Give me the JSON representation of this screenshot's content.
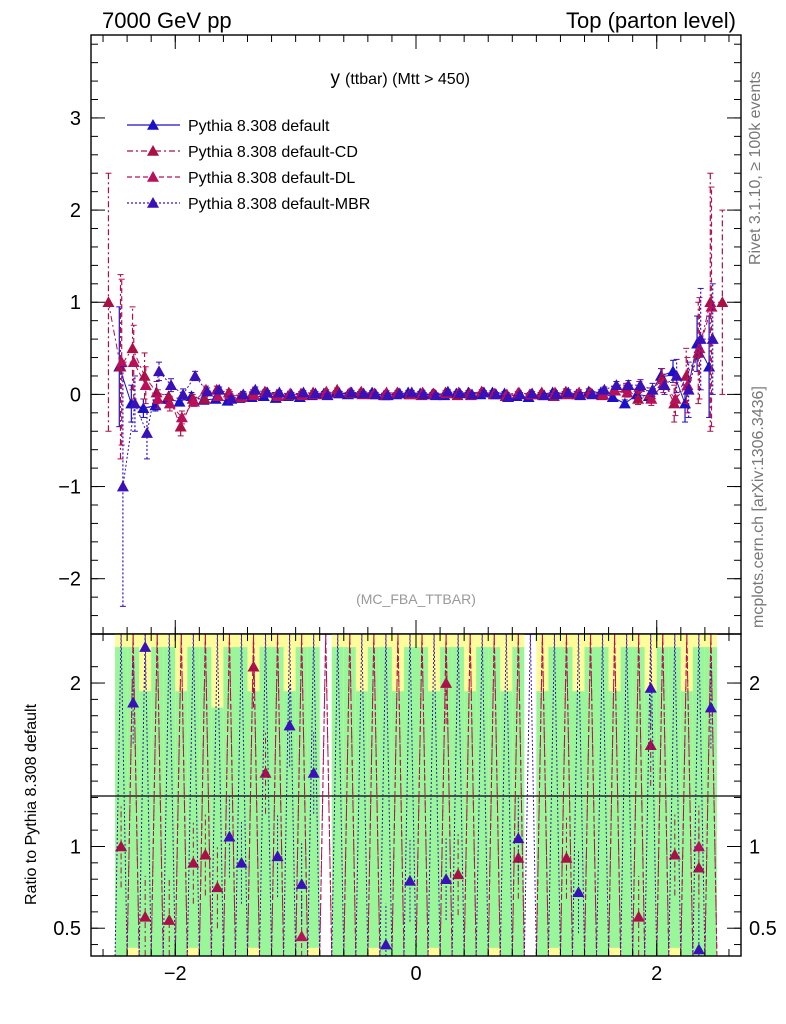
{
  "header": {
    "left": "7000 GeV pp",
    "right": "Top (parton level)"
  },
  "side_labels": {
    "rivet": "Rivet 3.1.10, ≥ 100k events",
    "source": "mcplots.cern.ch [arXiv:1306.3436]"
  },
  "chart_data": {
    "type": "line",
    "title_main": "y",
    "title_sub": "(ttbar) (Mtt > 450)",
    "watermark": "(MC_FBA_TTBAR)",
    "xlim": [
      -2.7,
      2.7
    ],
    "ylim": [
      -2.6,
      3.9
    ],
    "x_ticks": [
      "−2",
      "0",
      "2"
    ],
    "y_ticks": [
      "−2",
      "−1",
      "0",
      "1",
      "2",
      "3"
    ],
    "ratio_ylabel": "Ratio to Pythia 8.308 default",
    "ratio_ylim": [
      0.33,
      2.3
    ],
    "ratio_ticks": [
      "0.5",
      "1",
      "2"
    ],
    "ratio_reference": 1,
    "colors": {
      "default": "#1a10c8",
      "cd": "#aa1045",
      "dl": "#b8105a",
      "mbr": "#3a10b8",
      "band_inner": "#99f799",
      "band_outer": "#fcfc99"
    },
    "x": [
      -2.55,
      -2.45,
      -2.35,
      -2.25,
      -2.15,
      -2.05,
      -1.95,
      -1.85,
      -1.75,
      -1.65,
      -1.55,
      -1.45,
      -1.35,
      -1.25,
      -1.15,
      -1.05,
      -0.95,
      -0.85,
      -0.75,
      -0.65,
      -0.55,
      -0.45,
      -0.35,
      -0.25,
      -0.15,
      -0.05,
      0.05,
      0.15,
      0.25,
      0.35,
      0.45,
      0.55,
      0.65,
      0.75,
      0.85,
      0.95,
      1.05,
      1.15,
      1.25,
      1.35,
      1.45,
      1.55,
      1.65,
      1.75,
      1.85,
      1.95,
      2.05,
      2.15,
      2.25,
      2.35,
      2.45,
      2.55
    ],
    "series": [
      {
        "name": "Pythia 8.308 default",
        "style": "solid",
        "color_key": "default",
        "values": [
          null,
          0.3,
          -0.1,
          -0.15,
          -0.12,
          -0.05,
          -0.08,
          -0.02,
          -0.06,
          -0.05,
          -0.07,
          -0.04,
          -0.03,
          -0.02,
          -0.04,
          -0.02,
          -0.03,
          -0.01,
          0.01,
          0.02,
          0.0,
          0.01,
          0.02,
          -0.01,
          0.0,
          0.02,
          0.01,
          0.0,
          -0.01,
          0.01,
          0.02,
          0.0,
          0.02,
          0.01,
          -0.02,
          -0.03,
          0.0,
          0.02,
          0.01,
          0.0,
          0.03,
          0.02,
          -0.03,
          -0.1,
          0.0,
          -0.02,
          0.2,
          0.25,
          -0.1,
          0.55,
          0.3,
          null
        ],
        "errors": [
          null,
          0.65,
          0.2,
          0.1,
          0.06,
          0.05,
          0.04,
          0.04,
          0.03,
          0.03,
          0.03,
          0.03,
          0.02,
          0.02,
          0.02,
          0.02,
          0.02,
          0.02,
          0.02,
          0.02,
          0.02,
          0.02,
          0.02,
          0.02,
          0.02,
          0.02,
          0.02,
          0.02,
          0.02,
          0.02,
          0.02,
          0.02,
          0.02,
          0.02,
          0.02,
          0.02,
          0.02,
          0.02,
          0.02,
          0.03,
          0.03,
          0.03,
          0.03,
          0.04,
          0.05,
          0.06,
          0.08,
          0.12,
          0.2,
          0.3,
          0.55,
          null
        ]
      },
      {
        "name": "Pythia 8.308 default-CD",
        "style": "dashdot",
        "color_key": "cd",
        "values": [
          1.0,
          0.3,
          0.5,
          0.2,
          0.02,
          -0.02,
          -0.35,
          -0.05,
          -0.05,
          0.05,
          0.02,
          -0.02,
          0.02,
          0.03,
          0.0,
          -0.01,
          0.01,
          0.02,
          0.0,
          0.05,
          0.01,
          0.03,
          0.0,
          -0.01,
          0.02,
          0.0,
          -0.01,
          0.01,
          0.02,
          -0.01,
          0.01,
          0.03,
          0.0,
          -0.02,
          0.01,
          0.0,
          0.02,
          -0.02,
          0.03,
          0.0,
          0.02,
          -0.01,
          0.05,
          0.07,
          -0.05,
          0.0,
          0.18,
          -0.1,
          0.2,
          0.45,
          1.0,
          1.0
        ],
        "errors": [
          1.4,
          1.0,
          0.45,
          0.25,
          0.12,
          0.08,
          0.1,
          0.05,
          0.04,
          0.04,
          0.03,
          0.03,
          0.03,
          0.02,
          0.02,
          0.02,
          0.02,
          0.02,
          0.02,
          0.02,
          0.02,
          0.02,
          0.02,
          0.02,
          0.02,
          0.02,
          0.02,
          0.02,
          0.02,
          0.02,
          0.02,
          0.02,
          0.02,
          0.02,
          0.02,
          0.02,
          0.02,
          0.02,
          0.03,
          0.03,
          0.03,
          0.03,
          0.04,
          0.05,
          0.06,
          0.07,
          0.1,
          0.2,
          0.3,
          0.55,
          1.4,
          1.0
        ]
      },
      {
        "name": "Pythia 8.308 default-DL",
        "style": "dashed",
        "color_key": "dl",
        "values": [
          null,
          0.35,
          0.35,
          0.1,
          -0.05,
          -0.1,
          -0.25,
          -0.08,
          0.05,
          -0.02,
          0.0,
          -0.03,
          -0.01,
          0.02,
          -0.02,
          0.01,
          -0.01,
          0.0,
          0.03,
          0.01,
          0.02,
          0.0,
          0.01,
          0.02,
          0.01,
          0.0,
          0.02,
          0.0,
          0.01,
          0.02,
          -0.01,
          0.02,
          0.01,
          0.0,
          0.02,
          0.0,
          -0.01,
          0.02,
          0.0,
          0.02,
          0.01,
          0.0,
          0.04,
          0.02,
          0.08,
          -0.05,
          0.12,
          -0.05,
          0.1,
          0.5,
          0.95,
          null
        ],
        "errors": [
          null,
          0.9,
          0.4,
          0.2,
          0.1,
          0.08,
          0.07,
          0.05,
          0.04,
          0.04,
          0.03,
          0.03,
          0.03,
          0.02,
          0.02,
          0.02,
          0.02,
          0.02,
          0.02,
          0.02,
          0.02,
          0.02,
          0.02,
          0.02,
          0.02,
          0.02,
          0.02,
          0.02,
          0.02,
          0.02,
          0.02,
          0.02,
          0.02,
          0.02,
          0.02,
          0.02,
          0.02,
          0.02,
          0.03,
          0.03,
          0.03,
          0.03,
          0.04,
          0.05,
          0.06,
          0.07,
          0.1,
          0.18,
          0.3,
          0.55,
          1.3,
          null
        ]
      },
      {
        "name": "Pythia 8.308 default-MBR",
        "style": "dotted",
        "color_key": "mbr",
        "values": [
          null,
          -1.0,
          -0.1,
          -0.42,
          0.25,
          0.1,
          0.0,
          0.2,
          0.03,
          0.05,
          -0.05,
          0.0,
          0.05,
          0.02,
          0.02,
          0.0,
          0.02,
          0.01,
          -0.01,
          0.01,
          0.02,
          0.01,
          0.0,
          -0.01,
          0.01,
          0.02,
          0.0,
          -0.01,
          0.03,
          0.01,
          0.0,
          0.02,
          0.0,
          -0.03,
          0.0,
          0.01,
          -0.01,
          0.0,
          0.02,
          -0.01,
          0.0,
          0.05,
          0.1,
          0.1,
          0.1,
          0.05,
          0.1,
          0.2,
          0.05,
          0.6,
          0.6,
          null
        ],
        "errors": [
          null,
          1.3,
          0.3,
          0.28,
          0.1,
          0.07,
          0.06,
          0.05,
          0.04,
          0.03,
          0.03,
          0.03,
          0.03,
          0.02,
          0.02,
          0.02,
          0.02,
          0.02,
          0.02,
          0.02,
          0.02,
          0.02,
          0.02,
          0.02,
          0.02,
          0.02,
          0.02,
          0.02,
          0.02,
          0.02,
          0.02,
          0.02,
          0.02,
          0.02,
          0.02,
          0.02,
          0.02,
          0.02,
          0.03,
          0.03,
          0.03,
          0.03,
          0.04,
          0.05,
          0.06,
          0.07,
          0.1,
          0.18,
          0.3,
          0.55,
          0.6,
          null
        ]
      }
    ],
    "ratio": [
      {
        "color_key": "cd",
        "style": "dashdot",
        "values": [
          null,
          1.0,
          null,
          0.57,
          null,
          0.55,
          null,
          0.9,
          0.95,
          0.75,
          null,
          null,
          2.1,
          1.45,
          null,
          null,
          null,
          null,
          null,
          null,
          null,
          null,
          null,
          null,
          null,
          null,
          null,
          null,
          2.0,
          0.83,
          null,
          null,
          null,
          null,
          0.93,
          null,
          null,
          null,
          0.93,
          null,
          null,
          null,
          null,
          null,
          0.57,
          1.62,
          null,
          0.95,
          null,
          0.87,
          null,
          null
        ]
      },
      {
        "color_key": "dl",
        "style": "dashed",
        "values": [
          null,
          null,
          null,
          null,
          null,
          null,
          null,
          null,
          null,
          null,
          null,
          null,
          null,
          null,
          null,
          null,
          0.45,
          null,
          null,
          null,
          null,
          null,
          null,
          null,
          null,
          null,
          null,
          null,
          null,
          null,
          null,
          null,
          null,
          null,
          null,
          null,
          null,
          null,
          null,
          null,
          null,
          null,
          null,
          null,
          null,
          null,
          null,
          null,
          null,
          1.0,
          null,
          null
        ]
      },
      {
        "color_key": "mbr",
        "style": "dotted",
        "values": [
          null,
          null,
          1.88,
          2.22,
          null,
          null,
          null,
          null,
          null,
          null,
          1.06,
          0.9,
          null,
          null,
          0.94,
          1.74,
          0.77,
          1.45,
          null,
          null,
          null,
          null,
          null,
          0.4,
          null,
          0.79,
          null,
          null,
          0.8,
          null,
          null,
          null,
          null,
          null,
          1.05,
          null,
          null,
          null,
          null,
          0.72,
          null,
          null,
          null,
          null,
          null,
          1.97,
          null,
          null,
          null,
          0.37,
          1.85,
          null
        ]
      }
    ],
    "band_inner": [
      null,
      0.33,
      0.33,
      0.33,
      0.33,
      0.33,
      0.33,
      0.33,
      0.33,
      0.33,
      0.33,
      0.33,
      0.33,
      0.33,
      0.33,
      0.33,
      0.33,
      0.33,
      null,
      0.33,
      0.33,
      0.33,
      0.33,
      0.33,
      0.33,
      0.33,
      0.33,
      0.33,
      0.33,
      0.33,
      0.33,
      0.33,
      0.33,
      0.33,
      0.33,
      null,
      0.33,
      0.33,
      0.33,
      0.33,
      0.33,
      0.33,
      0.33,
      0.33,
      0.33,
      0.33,
      0.33,
      0.33,
      0.33,
      0.33,
      0.33,
      null
    ],
    "band_inner_top": [
      null,
      2.3,
      2.3,
      2.3,
      2.3,
      2.3,
      2.3,
      2.3,
      2.3,
      2.2,
      2.3,
      2.3,
      2.3,
      2.3,
      2.3,
      2.3,
      2.3,
      2.3,
      null,
      2.3,
      2.3,
      2.3,
      2.3,
      2.3,
      2.3,
      2.3,
      2.3,
      2.3,
      2.3,
      2.3,
      2.3,
      2.3,
      2.3,
      2.3,
      2.3,
      null,
      2.3,
      2.3,
      2.3,
      2.3,
      2.3,
      2.3,
      2.3,
      2.3,
      2.3,
      2.3,
      2.3,
      2.3,
      2.3,
      2.3,
      2.3,
      null
    ]
  },
  "legend_location": "upper left"
}
